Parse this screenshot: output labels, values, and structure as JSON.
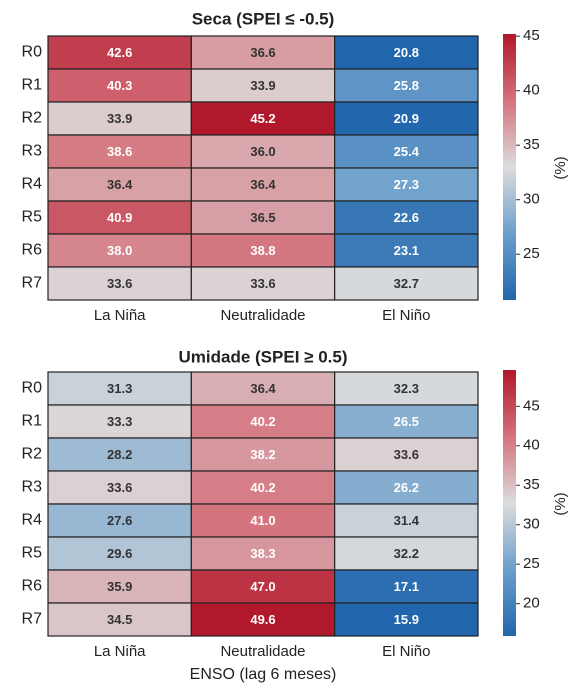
{
  "chart_data": [
    {
      "type": "heatmap",
      "title": "Seca (SPEI ≤ -0.5)",
      "categories": [
        "La Niña",
        "Neutralidade",
        "El Niño"
      ],
      "rows": [
        "R0",
        "R1",
        "R2",
        "R3",
        "R4",
        "R5",
        "R6",
        "R7"
      ],
      "values": [
        [
          42.6,
          36.6,
          20.8
        ],
        [
          40.3,
          33.9,
          25.8
        ],
        [
          33.9,
          45.2,
          20.9
        ],
        [
          38.6,
          36.0,
          25.4
        ],
        [
          36.4,
          36.4,
          27.3
        ],
        [
          40.9,
          36.5,
          22.6
        ],
        [
          38.0,
          38.8,
          23.1
        ],
        [
          33.6,
          33.6,
          32.7
        ]
      ],
      "value_labels": [
        [
          "42.6",
          "36.6",
          "20.8"
        ],
        [
          "40.3",
          "33.9",
          "25.8"
        ],
        [
          "33.9",
          "45.2",
          "20.9"
        ],
        [
          "38.6",
          "36.0",
          "25.4"
        ],
        [
          "36.4",
          "36.4",
          "27.3"
        ],
        [
          "40.9",
          "36.5",
          "22.6"
        ],
        [
          "38.0",
          "38.8",
          "23.1"
        ],
        [
          "33.6",
          "33.6",
          "32.7"
        ]
      ],
      "clim": [
        20.8,
        45.2
      ],
      "cticks": [
        25,
        30,
        35,
        40,
        45
      ],
      "colorbar_label": "(%)",
      "colormap": [
        "#2166ac",
        "#6b9fcc",
        "#dcdcdc",
        "#d4727c",
        "#b2182b"
      ]
    },
    {
      "type": "heatmap",
      "title": "Umidade (SPEI ≥ 0.5)",
      "categories": [
        "La Niña",
        "Neutralidade",
        "El Niño"
      ],
      "rows": [
        "R0",
        "R1",
        "R2",
        "R3",
        "R4",
        "R5",
        "R6",
        "R7"
      ],
      "values": [
        [
          31.3,
          36.4,
          32.3
        ],
        [
          33.3,
          40.2,
          26.5
        ],
        [
          28.2,
          38.2,
          33.6
        ],
        [
          33.6,
          40.2,
          26.2
        ],
        [
          27.6,
          41.0,
          31.4
        ],
        [
          29.6,
          38.3,
          32.2
        ],
        [
          35.9,
          47.0,
          17.1
        ],
        [
          34.5,
          49.6,
          15.9
        ]
      ],
      "value_labels": [
        [
          "31.3",
          "36.4",
          "32.3"
        ],
        [
          "33.3",
          "40.2",
          "26.5"
        ],
        [
          "28.2",
          "38.2",
          "33.6"
        ],
        [
          "33.6",
          "40.2",
          "26.2"
        ],
        [
          "27.6",
          "41.0",
          "31.4"
        ],
        [
          "29.6",
          "38.3",
          "32.2"
        ],
        [
          "35.9",
          "47.0",
          "17.1"
        ],
        [
          "34.5",
          "49.6",
          "15.9"
        ]
      ],
      "clim": [
        15.9,
        49.6
      ],
      "cticks": [
        20,
        25,
        30,
        35,
        40,
        45
      ],
      "colorbar_label": "(%)",
      "xlabel": "ENSO (lag 6 meses)",
      "colormap": [
        "#2166ac",
        "#6b9fcc",
        "#dcdcdc",
        "#d4727c",
        "#b2182b"
      ]
    }
  ]
}
